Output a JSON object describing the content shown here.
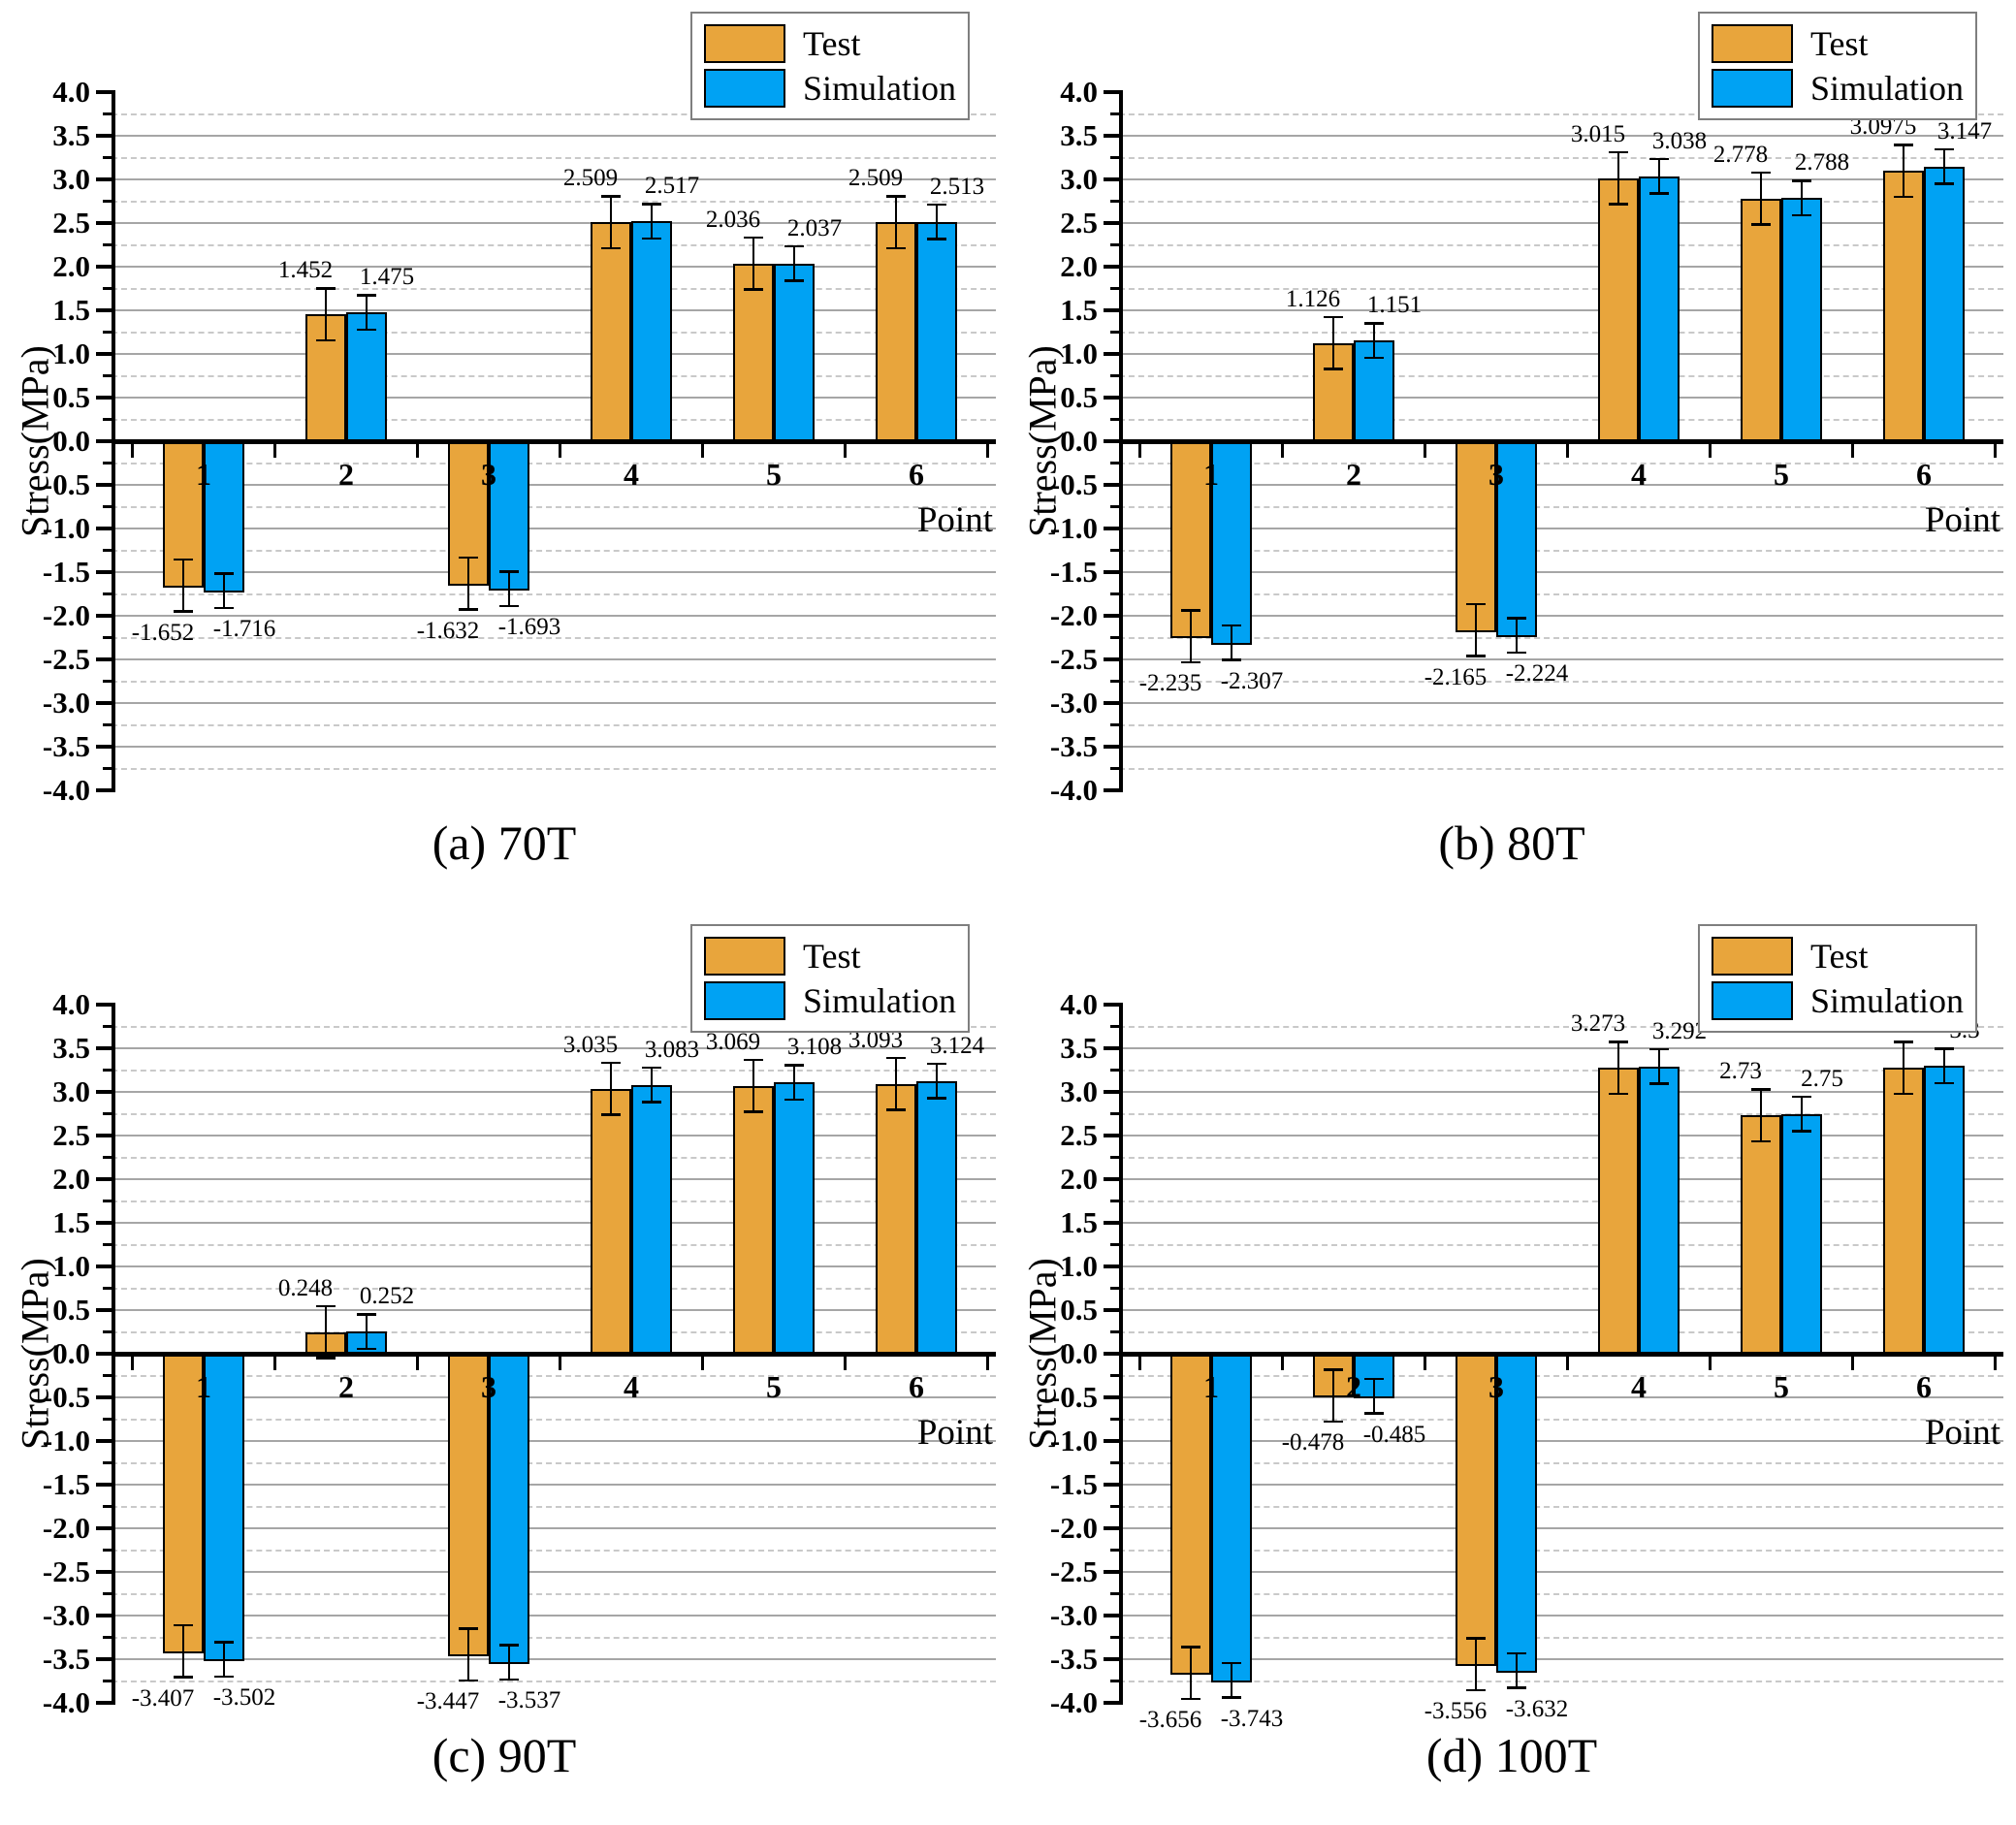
{
  "axes": {
    "ylabel": "Stress(MPa)",
    "xlabel": "Point",
    "ylim": [
      -4,
      4
    ],
    "ymajor_step": 0.5,
    "yminor_step": 0.25,
    "grid": true,
    "legend_position": "top-right"
  },
  "colors": {
    "test": "#E8A53C",
    "simulation": "#00A2F3",
    "axis": "#000000",
    "grid_major": "#a6a6a6",
    "grid_minor": "#c9c9c9"
  },
  "chart_data": [
    {
      "type": "bar",
      "caption": "(a) 70T",
      "categories": [
        "1",
        "2",
        "3",
        "4",
        "5",
        "6"
      ],
      "series": [
        {
          "name": "Test",
          "color": "#E8A53C",
          "error": 0.3,
          "values": [
            "-1.652",
            "1.452",
            "-1.632",
            "2.509",
            "2.036",
            "2.509"
          ]
        },
        {
          "name": "Simulation",
          "color": "#00A2F3",
          "error": 0.2,
          "values": [
            "-1.716",
            "1.475",
            "-1.693",
            "2.517",
            "2.037",
            "2.513"
          ]
        }
      ]
    },
    {
      "type": "bar",
      "caption": "(b) 80T",
      "categories": [
        "1",
        "2",
        "3",
        "4",
        "5",
        "6"
      ],
      "series": [
        {
          "name": "Test",
          "color": "#E8A53C",
          "error": 0.3,
          "values": [
            "-2.235",
            "1.126",
            "-2.165",
            "3.015",
            "2.778",
            "3.0975"
          ]
        },
        {
          "name": "Simulation",
          "color": "#00A2F3",
          "error": 0.2,
          "values": [
            "-2.307",
            "1.151",
            "-2.224",
            "3.038",
            "2.788",
            "3.147"
          ]
        }
      ]
    },
    {
      "type": "bar",
      "caption": "(c) 90T",
      "categories": [
        "1",
        "2",
        "3",
        "4",
        "5",
        "6"
      ],
      "series": [
        {
          "name": "Test",
          "color": "#E8A53C",
          "error": 0.3,
          "values": [
            "-3.407",
            "0.248",
            "-3.447",
            "3.035",
            "3.069",
            "3.093"
          ]
        },
        {
          "name": "Simulation",
          "color": "#00A2F3",
          "error": 0.2,
          "values": [
            "-3.502",
            "0.252",
            "-3.537",
            "3.083",
            "3.108",
            "3.124"
          ]
        }
      ]
    },
    {
      "type": "bar",
      "caption": "(d) 100T",
      "categories": [
        "1",
        "2",
        "3",
        "4",
        "5",
        "6"
      ],
      "series": [
        {
          "name": "Test",
          "color": "#E8A53C",
          "error": 0.3,
          "values": [
            "-3.656",
            "-0.478",
            "-3.556",
            "3.273",
            "2.73",
            "3.273"
          ]
        },
        {
          "name": "Simulation",
          "color": "#00A2F3",
          "error": 0.2,
          "values": [
            "-3.743",
            "-0.485",
            "-3.632",
            "3.292",
            "2.75",
            "3.3"
          ]
        }
      ]
    }
  ]
}
